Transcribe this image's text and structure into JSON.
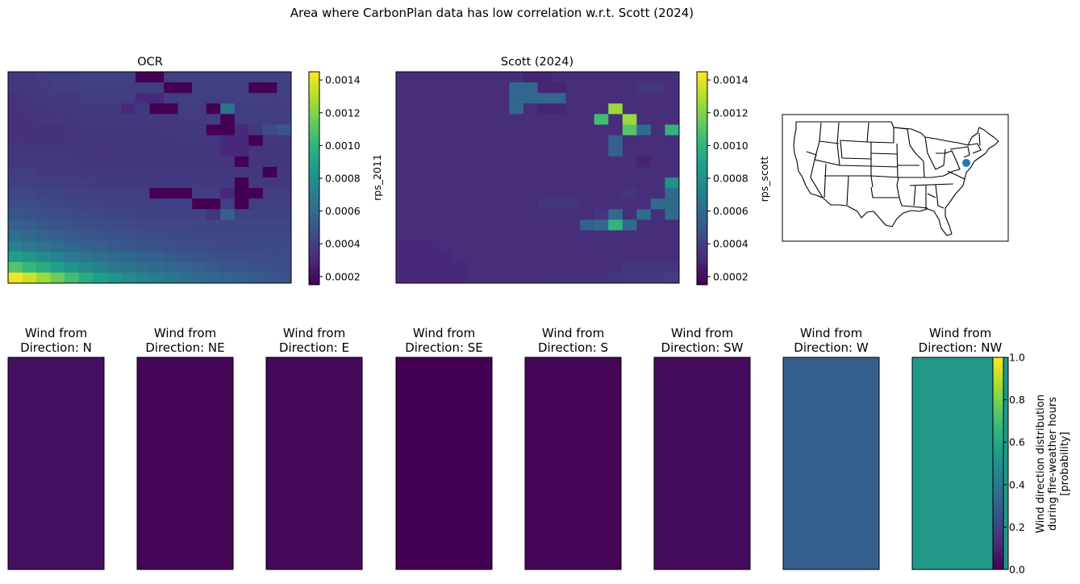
{
  "figure": {
    "suptitle": "Area where CarbonPlan data has low correlation w.r.t. Scott (2024)"
  },
  "colormap": {
    "name": "viridis",
    "stops": [
      "#440154",
      "#482878",
      "#3e4989",
      "#31688e",
      "#26828e",
      "#1f9e89",
      "#35b779",
      "#6ece58",
      "#b5de2b",
      "#fde725"
    ]
  },
  "chart_data": [
    {
      "type": "heatmap",
      "title": "OCR",
      "colorbar_label": "rps_2011",
      "vmin": 0.00015,
      "vmax": 0.00145,
      "colorbar_ticks": [
        "0.0002",
        "0.0004",
        "0.0006",
        "0.0008",
        "0.0010",
        "0.0012",
        "0.0014"
      ],
      "colorbar_tick_values": [
        0.0002,
        0.0004,
        0.0006,
        0.0008,
        0.001,
        0.0012,
        0.0014
      ],
      "grid": [
        [
          0.00036,
          0.00037,
          0.00038,
          0.00039,
          0.00039,
          0.0004,
          0.0004,
          0.0004,
          0.0004,
          0.00015,
          0.00015,
          0.0004,
          0.00041,
          0.00041,
          0.00041,
          0.00041,
          0.00041,
          0.00041,
          0.00041,
          0.00041
        ],
        [
          0.00035,
          0.00036,
          0.00037,
          0.00038,
          0.00038,
          0.00039,
          0.00039,
          0.00039,
          0.00039,
          0.00039,
          0.00039,
          0.00015,
          0.00015,
          0.0004,
          0.0004,
          0.0004,
          0.0004,
          0.00015,
          0.00015,
          0.0004
        ],
        [
          0.00034,
          0.00035,
          0.00036,
          0.00037,
          0.00037,
          0.00038,
          0.00038,
          0.00038,
          0.00038,
          0.0003,
          0.0003,
          0.00038,
          0.00039,
          0.00039,
          0.00039,
          0.00039,
          0.00039,
          0.00039,
          0.00039,
          0.00039
        ],
        [
          0.00034,
          0.00035,
          0.00035,
          0.00036,
          0.00036,
          0.00037,
          0.00037,
          0.00037,
          0.0003,
          0.00037,
          0.00015,
          0.00015,
          0.00038,
          0.00038,
          0.00015,
          0.00065,
          0.00038,
          0.00038,
          0.00038,
          0.00038
        ],
        [
          0.00033,
          0.00034,
          0.00035,
          0.00035,
          0.00035,
          0.00036,
          0.00036,
          0.00036,
          0.00036,
          0.00036,
          0.00036,
          0.00036,
          0.00037,
          0.00037,
          0.00038,
          0.00015,
          0.00038,
          0.00038,
          0.00038,
          0.00038
        ],
        [
          0.00033,
          0.00033,
          0.00034,
          0.00034,
          0.00035,
          0.00035,
          0.00035,
          0.00035,
          0.00035,
          0.00035,
          0.00035,
          0.00036,
          0.00036,
          0.00036,
          0.00015,
          0.00015,
          0.0003,
          0.00037,
          0.00045,
          0.0005
        ],
        [
          0.00034,
          0.00034,
          0.00034,
          0.00034,
          0.00035,
          0.00035,
          0.00035,
          0.00035,
          0.00035,
          0.00035,
          0.00035,
          0.00035,
          0.00036,
          0.00036,
          0.00036,
          0.0003,
          0.0003,
          0.00015,
          0.00036,
          0.00036
        ],
        [
          0.00035,
          0.00035,
          0.00035,
          0.00035,
          0.00035,
          0.00035,
          0.00035,
          0.00035,
          0.00035,
          0.00035,
          0.00035,
          0.00035,
          0.00035,
          0.00035,
          0.00035,
          0.0003,
          0.0003,
          0.00035,
          0.00035,
          0.00035
        ],
        [
          0.00036,
          0.00036,
          0.00036,
          0.00036,
          0.00036,
          0.00035,
          0.00035,
          0.00035,
          0.00035,
          0.00035,
          0.00035,
          0.00035,
          0.00035,
          0.00035,
          0.00035,
          0.00035,
          0.00015,
          0.00035,
          0.00035,
          0.00035
        ],
        [
          0.00038,
          0.00038,
          0.00037,
          0.00037,
          0.00037,
          0.00036,
          0.00036,
          0.00036,
          0.00036,
          0.00036,
          0.00036,
          0.00036,
          0.00036,
          0.00036,
          0.00036,
          0.00036,
          0.00036,
          0.00036,
          0.00015,
          0.00036
        ],
        [
          0.0004,
          0.0004,
          0.00039,
          0.00039,
          0.00038,
          0.00038,
          0.00037,
          0.00037,
          0.00037,
          0.00037,
          0.00037,
          0.00037,
          0.00037,
          0.00037,
          0.00037,
          0.00037,
          0.00015,
          0.00037,
          0.00037,
          0.00037
        ],
        [
          0.00043,
          0.00042,
          0.00041,
          0.00041,
          0.0004,
          0.0004,
          0.00039,
          0.00039,
          0.00039,
          0.00039,
          0.00015,
          0.00015,
          0.00015,
          0.00038,
          0.00038,
          0.0003,
          0.00015,
          0.00015,
          0.00038,
          0.00038
        ],
        [
          0.00046,
          0.00045,
          0.00044,
          0.00043,
          0.00042,
          0.00041,
          0.00041,
          0.0004,
          0.0004,
          0.0004,
          0.0004,
          0.0004,
          0.0004,
          0.00015,
          0.00015,
          0.00039,
          0.00015,
          0.00039,
          0.00039,
          0.00039
        ],
        [
          0.0005,
          0.00048,
          0.00047,
          0.00046,
          0.00045,
          0.00044,
          0.00043,
          0.00042,
          0.00042,
          0.00041,
          0.00041,
          0.00041,
          0.00041,
          0.00041,
          0.00035,
          0.00055,
          0.00041,
          0.00041,
          0.00041,
          0.00041
        ],
        [
          0.00055,
          0.00053,
          0.00051,
          0.00049,
          0.00048,
          0.00047,
          0.00046,
          0.00045,
          0.00044,
          0.00043,
          0.00043,
          0.00042,
          0.00042,
          0.00042,
          0.00042,
          0.00042,
          0.00042,
          0.00042,
          0.00042,
          0.00042
        ],
        [
          0.00062,
          0.00059,
          0.00056,
          0.00054,
          0.00052,
          0.0005,
          0.00049,
          0.00048,
          0.00047,
          0.00046,
          0.00045,
          0.00044,
          0.00044,
          0.00043,
          0.00043,
          0.00043,
          0.00043,
          0.00043,
          0.00043,
          0.00043
        ],
        [
          0.00072,
          0.00068,
          0.00064,
          0.00061,
          0.00058,
          0.00056,
          0.00054,
          0.00052,
          0.0005,
          0.00049,
          0.00048,
          0.00047,
          0.00046,
          0.00045,
          0.00045,
          0.00044,
          0.00044,
          0.00044,
          0.00044,
          0.00044
        ],
        [
          0.00088,
          0.00082,
          0.00077,
          0.00072,
          0.00068,
          0.00065,
          0.00062,
          0.0006,
          0.00058,
          0.00056,
          0.00054,
          0.00052,
          0.0005,
          0.00049,
          0.00048,
          0.00047,
          0.00046,
          0.00046,
          0.00045,
          0.00045
        ],
        [
          0.0011,
          0.00102,
          0.00095,
          0.00088,
          0.00082,
          0.00077,
          0.00072,
          0.00068,
          0.00065,
          0.00062,
          0.0006,
          0.00058,
          0.00056,
          0.00054,
          0.00052,
          0.0005,
          0.00049,
          0.00048,
          0.00047,
          0.00046
        ],
        [
          0.00142,
          0.00135,
          0.00125,
          0.00115,
          0.00105,
          0.00095,
          0.00088,
          0.00082,
          0.00077,
          0.00073,
          0.00069,
          0.00066,
          0.00063,
          0.0006,
          0.00058,
          0.00056,
          0.00054,
          0.00052,
          0.0005,
          0.00048
        ]
      ]
    },
    {
      "type": "heatmap",
      "title": "Scott (2024)",
      "colorbar_label": "rps_scott",
      "vmin": 0.00015,
      "vmax": 0.00145,
      "colorbar_ticks": [
        "0.0002",
        "0.0004",
        "0.0006",
        "0.0008",
        "0.0010",
        "0.0012",
        "0.0014"
      ],
      "colorbar_tick_values": [
        0.0002,
        0.0004,
        0.0006,
        0.0008,
        0.001,
        0.0012,
        0.0014
      ],
      "grid": [
        [
          0.00032,
          0.00032,
          0.00032,
          0.00032,
          0.00032,
          0.00032,
          0.00032,
          0.00032,
          0.00032,
          0.00028,
          0.00028,
          0.00032,
          0.00032,
          0.00032,
          0.00032,
          0.00032,
          0.00032,
          0.00032,
          0.00032,
          0.00032
        ],
        [
          0.00032,
          0.00032,
          0.00032,
          0.00032,
          0.00032,
          0.00032,
          0.00032,
          0.00032,
          0.00058,
          0.00058,
          0.00028,
          0.00028,
          0.00032,
          0.00032,
          0.00032,
          0.00032,
          0.00032,
          0.00035,
          0.00035,
          0.00032
        ],
        [
          0.00032,
          0.00032,
          0.00032,
          0.00032,
          0.00032,
          0.00032,
          0.00032,
          0.00032,
          0.00058,
          0.00058,
          0.00058,
          0.00058,
          0.00032,
          0.00032,
          0.00032,
          0.00032,
          0.00032,
          0.00032,
          0.00032,
          0.00032
        ],
        [
          0.00032,
          0.00032,
          0.00032,
          0.00032,
          0.00032,
          0.00032,
          0.00032,
          0.00032,
          0.00058,
          0.00032,
          0.00028,
          0.00028,
          0.00032,
          0.00032,
          0.00032,
          0.00125,
          0.00032,
          0.00032,
          0.00032,
          0.00032
        ],
        [
          0.00032,
          0.00032,
          0.00032,
          0.00032,
          0.00032,
          0.00032,
          0.00032,
          0.00032,
          0.00032,
          0.00032,
          0.00032,
          0.00032,
          0.00032,
          0.00032,
          0.00105,
          0.00032,
          0.00125,
          0.00032,
          0.00032,
          0.00032
        ],
        [
          0.00032,
          0.00032,
          0.00032,
          0.00032,
          0.00032,
          0.00032,
          0.00032,
          0.00032,
          0.00032,
          0.00032,
          0.00032,
          0.00032,
          0.00032,
          0.00032,
          0.00032,
          0.00032,
          0.0011,
          0.0006,
          0.00032,
          0.001
        ],
        [
          0.00032,
          0.00032,
          0.00032,
          0.00032,
          0.00032,
          0.00032,
          0.00032,
          0.00032,
          0.00032,
          0.00032,
          0.00032,
          0.00032,
          0.00032,
          0.00032,
          0.00032,
          0.00055,
          0.00032,
          0.00032,
          0.00032,
          0.00032
        ],
        [
          0.00032,
          0.00032,
          0.00032,
          0.00032,
          0.00032,
          0.00032,
          0.00032,
          0.00032,
          0.00032,
          0.00032,
          0.00032,
          0.00032,
          0.00032,
          0.00032,
          0.00032,
          0.00055,
          0.00032,
          0.00032,
          0.00032,
          0.00032
        ],
        [
          0.00032,
          0.00032,
          0.00032,
          0.00032,
          0.00032,
          0.00032,
          0.00032,
          0.00032,
          0.00032,
          0.00032,
          0.00032,
          0.00032,
          0.00032,
          0.00032,
          0.00032,
          0.00032,
          0.00032,
          0.00028,
          0.00032,
          0.00032
        ],
        [
          0.00032,
          0.00032,
          0.00032,
          0.00032,
          0.00032,
          0.00032,
          0.00032,
          0.00032,
          0.00032,
          0.00032,
          0.00032,
          0.00032,
          0.00032,
          0.00032,
          0.00032,
          0.00032,
          0.00032,
          0.00032,
          0.00032,
          0.00032
        ],
        [
          0.00032,
          0.00032,
          0.00032,
          0.00032,
          0.00032,
          0.00032,
          0.00032,
          0.00032,
          0.00032,
          0.00032,
          0.00032,
          0.00032,
          0.00032,
          0.00032,
          0.00032,
          0.00032,
          0.00032,
          0.00032,
          0.00032,
          0.0008
        ],
        [
          0.00032,
          0.00032,
          0.00032,
          0.00032,
          0.00032,
          0.00032,
          0.00032,
          0.00032,
          0.00032,
          0.00032,
          0.00032,
          0.00032,
          0.00032,
          0.00032,
          0.00032,
          0.00032,
          0.00035,
          0.00032,
          0.00032,
          0.0006
        ],
        [
          0.00032,
          0.00032,
          0.00032,
          0.00032,
          0.00032,
          0.00032,
          0.00032,
          0.00032,
          0.00032,
          0.00032,
          0.00035,
          0.00035,
          0.00035,
          0.00032,
          0.00032,
          0.00032,
          0.00032,
          0.00032,
          0.0006,
          0.0006
        ],
        [
          0.00032,
          0.00032,
          0.00032,
          0.00032,
          0.00032,
          0.00032,
          0.00032,
          0.00032,
          0.00032,
          0.00032,
          0.00032,
          0.00032,
          0.00032,
          0.00032,
          0.00035,
          0.0006,
          0.00032,
          0.0006,
          0.00032,
          0.0006
        ],
        [
          0.00032,
          0.00032,
          0.00032,
          0.00032,
          0.00032,
          0.00032,
          0.00032,
          0.00032,
          0.00032,
          0.00032,
          0.00032,
          0.00032,
          0.00032,
          0.00055,
          0.0006,
          0.001,
          0.0006,
          0.00032,
          0.00032,
          0.00032
        ],
        [
          0.00032,
          0.00032,
          0.00032,
          0.00032,
          0.00032,
          0.00032,
          0.00032,
          0.00032,
          0.00032,
          0.00032,
          0.00032,
          0.00032,
          0.00032,
          0.00032,
          0.00032,
          0.00032,
          0.00032,
          0.00032,
          0.00032,
          0.00032
        ],
        [
          0.0003,
          0.0003,
          0.0003,
          0.00032,
          0.00032,
          0.00032,
          0.00032,
          0.00032,
          0.00032,
          0.00032,
          0.00032,
          0.00032,
          0.00032,
          0.00032,
          0.00032,
          0.00032,
          0.00032,
          0.00032,
          0.00032,
          0.00032
        ],
        [
          0.0003,
          0.0003,
          0.0003,
          0.0003,
          0.00032,
          0.00032,
          0.00032,
          0.00032,
          0.00032,
          0.00032,
          0.00032,
          0.00032,
          0.00032,
          0.00032,
          0.00032,
          0.00032,
          0.00032,
          0.00032,
          0.00032,
          0.00032
        ],
        [
          0.0003,
          0.0003,
          0.0003,
          0.0003,
          0.0003,
          0.00032,
          0.00032,
          0.00032,
          0.00032,
          0.00032,
          0.00032,
          0.00032,
          0.00032,
          0.00032,
          0.00032,
          0.00032,
          0.00035,
          0.00035,
          0.00035,
          0.00035
        ],
        [
          0.0003,
          0.0003,
          0.0003,
          0.0003,
          0.0003,
          0.00032,
          0.00032,
          0.00032,
          0.00032,
          0.00032,
          0.00033,
          0.00033,
          0.00034,
          0.00034,
          0.00034,
          0.00035,
          0.00036,
          0.00037,
          0.00037,
          0.00038
        ]
      ]
    },
    {
      "type": "bar",
      "subtype": "wind-direction-probability",
      "categories": [
        "N",
        "NE",
        "E",
        "SE",
        "S",
        "SW",
        "W",
        "NW"
      ],
      "panel_titles": [
        "Wind from\nDirection: N",
        "Wind from\nDirection: NE",
        "Wind from\nDirection: E",
        "Wind from\nDirection: SE",
        "Wind from\nDirection: S",
        "Wind from\nDirection: SW",
        "Wind from\nDirection: W",
        "Wind from\nDirection: NW"
      ],
      "values": [
        0.04,
        0.01,
        0.02,
        0.0,
        0.01,
        0.03,
        0.3,
        0.53
      ],
      "vmin": 0,
      "vmax": 1,
      "colorbar_ticks": [
        "0.0",
        "0.2",
        "0.4",
        "0.6",
        "0.8",
        "1.0"
      ],
      "colorbar_tick_values": [
        0,
        0.2,
        0.4,
        0.6,
        0.8,
        1.0
      ],
      "colorbar_label_lines": [
        "Wind direction distribution",
        "during fire-weather hours",
        "[probability]"
      ]
    }
  ],
  "map": {
    "marker_color": "#1f77b4"
  }
}
